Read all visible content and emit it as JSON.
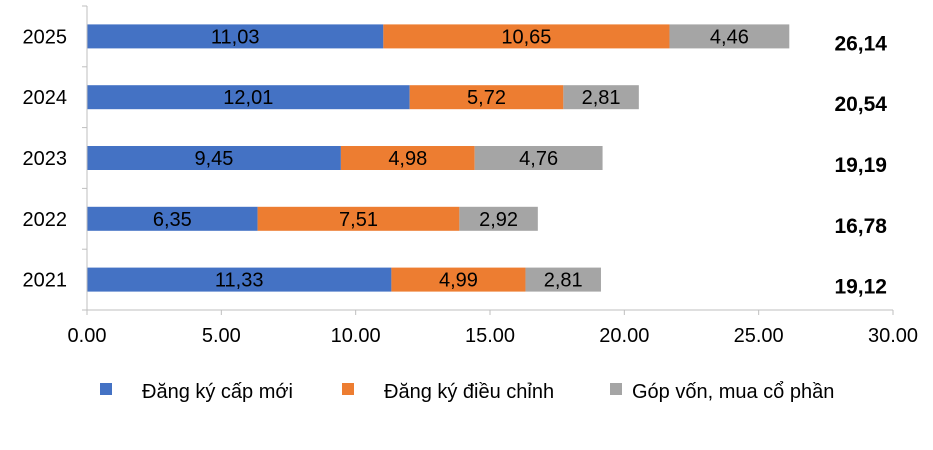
{
  "chart_data": {
    "type": "bar",
    "orientation": "horizontal",
    "stacked": true,
    "categories": [
      "2025",
      "2024",
      "2023",
      "2022",
      "2021"
    ],
    "series": [
      {
        "name": "Đăng ký cấp mới",
        "color": "#4472C4",
        "values": [
          11.03,
          12.01,
          9.45,
          6.35,
          11.33
        ],
        "labels": [
          "11,03",
          "12,01",
          "9,45",
          "6,35",
          "11,33"
        ]
      },
      {
        "name": "Đăng ký điều chỉnh",
        "color": "#ED7D31",
        "values": [
          10.65,
          5.72,
          4.98,
          7.51,
          4.99
        ],
        "labels": [
          "10,65",
          "5,72",
          "4,98",
          "7,51",
          "4,99"
        ]
      },
      {
        "name": "Góp vốn, mua cổ phần",
        "color": "#A5A5A5",
        "values": [
          4.46,
          2.81,
          4.76,
          2.92,
          2.81
        ],
        "labels": [
          "4,46",
          "2,81",
          "4,76",
          "2,92",
          "2,81"
        ]
      }
    ],
    "totals": [
      "26,14",
      "20,54",
      "19,19",
      "16,78",
      "19,12"
    ],
    "xlim": [
      0,
      30
    ],
    "xticks": [
      "0.00",
      "5.00",
      "10.00",
      "15.00",
      "20.00",
      "25.00",
      "30.00"
    ],
    "grid": false,
    "legend_position": "bottom",
    "title": "",
    "xlabel": "",
    "ylabel": ""
  }
}
